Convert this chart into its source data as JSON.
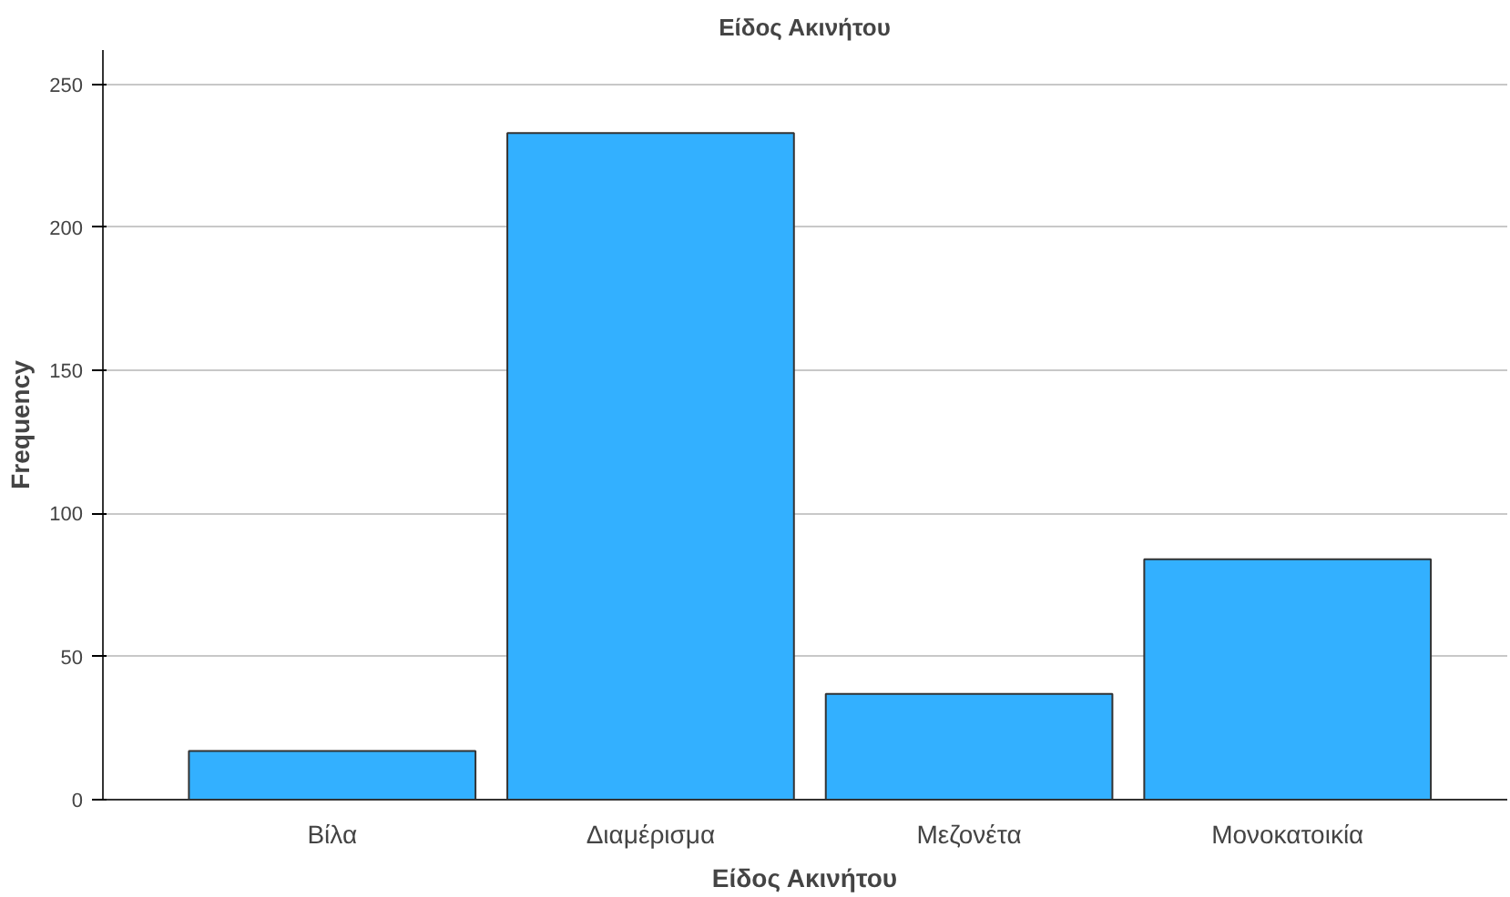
{
  "chart_data": {
    "type": "bar",
    "title": "Είδος Ακινήτου",
    "xlabel": "Είδος Ακινήτου",
    "ylabel": "Frequency",
    "categories": [
      "Βίλα",
      "Διαμέρισμα",
      "Μεζονέτα",
      "Μονοκατοικία"
    ],
    "values": [
      17,
      233,
      37,
      84
    ],
    "color": "#33b0ff",
    "ylim": [
      0,
      262
    ],
    "yticks": [
      0,
      50,
      100,
      150,
      200,
      250
    ],
    "grid": "y"
  }
}
